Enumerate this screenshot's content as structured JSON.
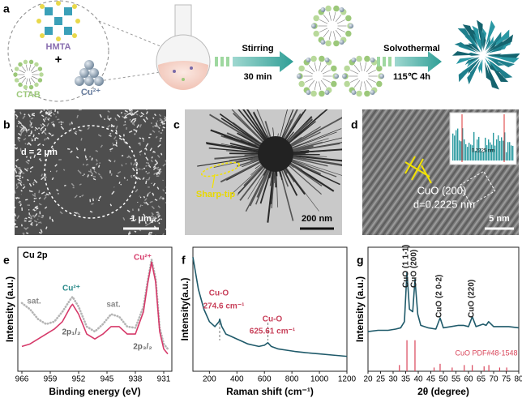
{
  "panel_labels": [
    "a",
    "b",
    "c",
    "d",
    "e",
    "f",
    "g"
  ],
  "schematic": {
    "hmta": "HMTA",
    "plus": "+",
    "ctab": "CTAB",
    "cu": "Cu²⁺",
    "step1": {
      "top": "Stirring",
      "bottom": "30 min"
    },
    "step2": {
      "top": "Solvothermal",
      "bottom": "115℃ 4h"
    }
  },
  "images": {
    "sem": {
      "diameter": "d = 2 μm",
      "scale": "1 μm"
    },
    "tem": {
      "annotation": "Sharp-tip",
      "scale": "200 nm"
    },
    "hrtem": {
      "plane": "CuO (200)",
      "spacing": "d=0.2225 nm",
      "scale": "5 nm",
      "inset": "0.2225 nm"
    }
  },
  "chart_data": [
    {
      "type": "line",
      "title": "Cu 2p",
      "xlabel": "Binding energy (eV)",
      "ylabel": "Intensity (a.u.)",
      "x": [
        966,
        964,
        962,
        960,
        958,
        956,
        954,
        953.5,
        952,
        950,
        948,
        946,
        944,
        942,
        940,
        938,
        936,
        935,
        934,
        933,
        932,
        931,
        930
      ],
      "xlim": [
        967,
        929
      ],
      "xticks": [
        966,
        959,
        952,
        945,
        938,
        931
      ],
      "ylim": [
        0,
        100
      ],
      "series": [
        {
          "color": "#b5b5b5",
          "line_style": "dotted",
          "values": [
            55,
            50,
            42,
            38,
            40,
            48,
            58,
            60,
            52,
            36,
            32,
            38,
            46,
            44,
            36,
            35,
            52,
            72,
            90,
            75,
            35,
            22,
            18
          ]
        },
        {
          "color": "#d63a6a",
          "line_style": "solid",
          "values": [
            20,
            22,
            26,
            30,
            34,
            40,
            52,
            54,
            46,
            30,
            26,
            30,
            36,
            36,
            30,
            30,
            48,
            70,
            88,
            72,
            32,
            18,
            14
          ]
        }
      ],
      "annotations": [
        "Cu²⁺",
        "Cu²⁺",
        "sat.",
        "sat.",
        "2p₁/₂",
        "2p₃/₂"
      ]
    },
    {
      "type": "line",
      "xlabel": "Raman shift (cm⁻¹)",
      "ylabel": "Intensity(a.u.)",
      "x": [
        80,
        120,
        160,
        200,
        240,
        270,
        275,
        290,
        320,
        360,
        400,
        440,
        480,
        520,
        560,
        600,
        625,
        650,
        700,
        760,
        820,
        900,
        1000,
        1100,
        1200
      ],
      "xlim": [
        80,
        1200
      ],
      "xticks": [
        200,
        400,
        600,
        800,
        1000,
        1200
      ],
      "ylim": [
        0,
        100
      ],
      "series": [
        {
          "color": "#1f5a6a",
          "line_style": "solid",
          "values": [
            92,
            66,
            50,
            40,
            36,
            40,
            42,
            36,
            30,
            28,
            26,
            24,
            22,
            21,
            20,
            21,
            23,
            20,
            18,
            17,
            16,
            15,
            14,
            13,
            12
          ]
        }
      ],
      "markers": [
        274.6,
        625.61
      ],
      "annotations": [
        "Cu-O",
        "274.6 cm⁻¹",
        "Cu-O",
        "625.61 cm⁻¹"
      ]
    },
    {
      "type": "line",
      "xlabel": "2θ (degree)",
      "ylabel": "Intensity (a.u.)",
      "x": [
        20,
        24,
        28,
        31,
        33,
        34.5,
        35.5,
        36.5,
        37.8,
        38.7,
        39.8,
        41,
        44,
        47,
        48.7,
        50,
        53,
        56,
        58,
        60,
        61.5,
        63,
        65.8,
        67,
        68,
        70,
        73,
        76,
        80
      ],
      "xlim": [
        20,
        80
      ],
      "xticks": [
        20,
        25,
        30,
        35,
        40,
        45,
        50,
        55,
        60,
        65,
        70,
        75,
        80
      ],
      "ylim": [
        0,
        100
      ],
      "series": [
        {
          "color": "#1f5a6a",
          "line_style": "solid",
          "values": [
            32,
            33,
            33,
            34,
            35,
            40,
            80,
            50,
            48,
            74,
            46,
            37,
            35,
            34,
            43,
            35,
            36,
            37,
            37,
            36,
            44,
            36,
            38,
            37,
            40,
            36,
            36,
            36,
            35
          ]
        }
      ],
      "reference": {
        "name": "CuO PDF#48-1548",
        "color": "#d9455a",
        "positions": [
          32.5,
          35.5,
          38.7,
          46.3,
          48.7,
          53.5,
          58.3,
          61.5,
          66.2,
          68.1,
          72.4,
          75.2
        ],
        "heights": [
          5,
          25,
          25,
          3,
          6,
          3,
          5,
          5,
          4,
          5,
          3,
          3
        ]
      },
      "annotations": [
        "CuO (1 1-1)",
        "CuO (200)",
        "CuO (2 0-2)",
        "CuO (220)"
      ]
    }
  ]
}
